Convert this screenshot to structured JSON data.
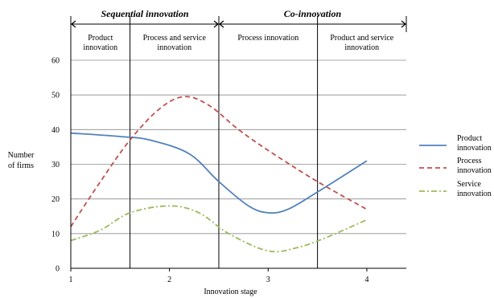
{
  "chart_data": {
    "type": "line",
    "title": "",
    "xlabel": "Innovation stage",
    "ylabel": [
      "Number",
      "of firms"
    ],
    "x": [
      1,
      2,
      3,
      4
    ],
    "xlim": [
      1,
      4.4
    ],
    "ylim": [
      0,
      60
    ],
    "yticks": [
      0,
      10,
      20,
      30,
      40,
      50,
      60
    ],
    "grid": true,
    "legend_position": "right",
    "phases": [
      {
        "label": "Sequential innovation",
        "from": 1,
        "to": 2.5
      },
      {
        "label": "Co-innovation",
        "from": 2.5,
        "to": 4.4
      }
    ],
    "zones": [
      {
        "label": [
          "Product",
          "innovation"
        ],
        "from": 1,
        "to": 1.6
      },
      {
        "label": [
          "Process and service",
          "innovation"
        ],
        "from": 1.6,
        "to": 2.5
      },
      {
        "label": [
          "Process innovation"
        ],
        "from": 2.5,
        "to": 3.5
      },
      {
        "label": [
          "Product and service",
          "innovation"
        ],
        "from": 3.5,
        "to": 4.4
      }
    ],
    "series": [
      {
        "name": [
          "Product",
          "innovation"
        ],
        "color": "#4f81bd",
        "dash": "solid",
        "points": [
          [
            1,
            39
          ],
          [
            1.5,
            38
          ],
          [
            1.8,
            37
          ],
          [
            2.2,
            33
          ],
          [
            2.5,
            25
          ],
          [
            2.8,
            18
          ],
          [
            3,
            16
          ],
          [
            3.2,
            17
          ],
          [
            3.5,
            22
          ],
          [
            4,
            31
          ]
        ]
      },
      {
        "name": [
          "Process",
          "innovation"
        ],
        "color": "#c0504d",
        "dash": "dashed",
        "points": [
          [
            1,
            12
          ],
          [
            1.3,
            25
          ],
          [
            1.6,
            37
          ],
          [
            1.9,
            46
          ],
          [
            2.15,
            49.5
          ],
          [
            2.4,
            47
          ],
          [
            2.7,
            40
          ],
          [
            3,
            34
          ],
          [
            3.5,
            25
          ],
          [
            4,
            17
          ]
        ]
      },
      {
        "name": [
          "Service",
          "innovation"
        ],
        "color": "#9bbb59",
        "dash": "dashdot",
        "points": [
          [
            1,
            8
          ],
          [
            1.3,
            11
          ],
          [
            1.6,
            16
          ],
          [
            2,
            18
          ],
          [
            2.3,
            16
          ],
          [
            2.6,
            10
          ],
          [
            3,
            5
          ],
          [
            3.3,
            6
          ],
          [
            3.6,
            9
          ],
          [
            4,
            14
          ]
        ]
      }
    ]
  }
}
